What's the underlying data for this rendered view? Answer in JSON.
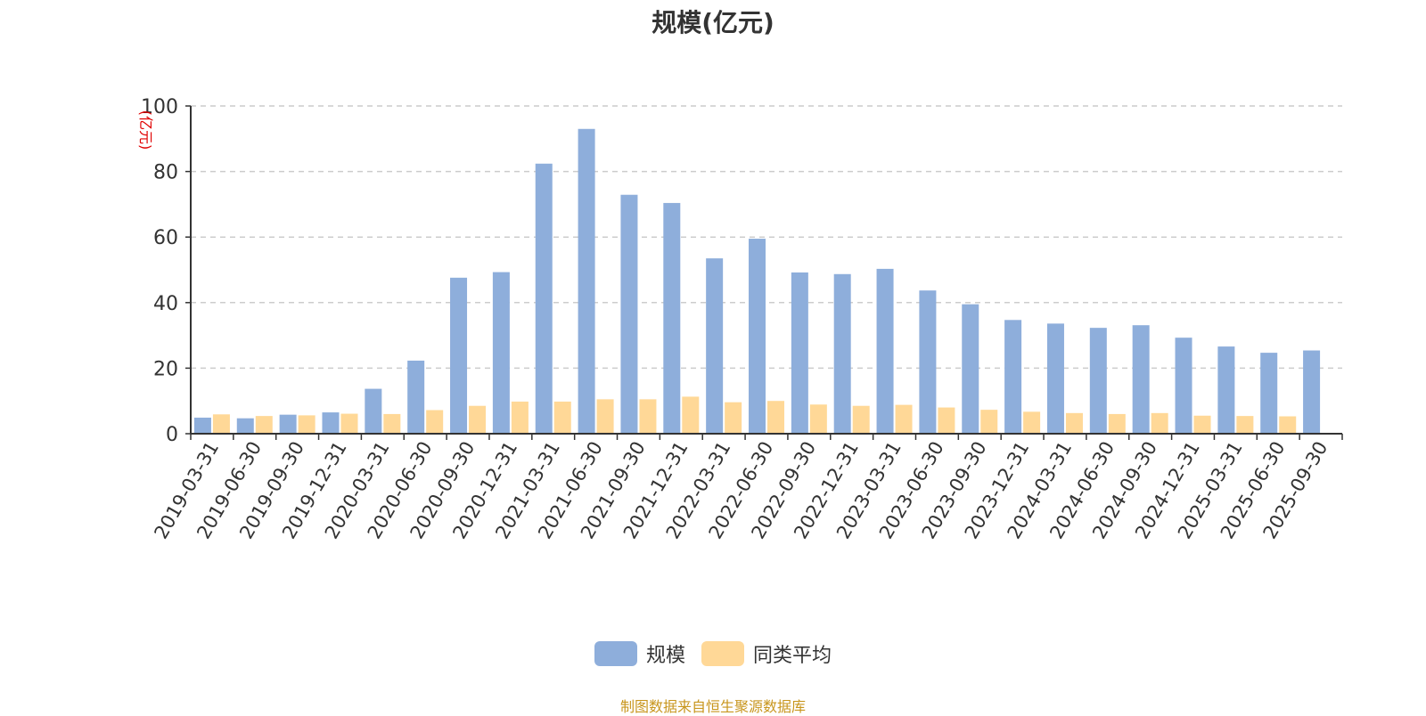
{
  "title": "规模(亿元)",
  "unit_label": "(亿元)",
  "source_text": "制图数据来自恒生聚源数据库",
  "colors": {
    "series_1": "#8eaedb",
    "series_2": "#ffd897",
    "axis": "#333333",
    "grid": "#cccccc",
    "unit": "#e00000",
    "source": "#c8961e"
  },
  "chart_data": {
    "type": "bar",
    "title": "规模(亿元)",
    "xlabel": "",
    "ylabel": "(亿元)",
    "ylim": [
      0,
      100
    ],
    "yticks": [
      0,
      20,
      40,
      60,
      80,
      100
    ],
    "grid": true,
    "legend_position": "bottom",
    "categories": [
      "2019-03-31",
      "2019-06-30",
      "2019-09-30",
      "2019-12-31",
      "2020-03-31",
      "2020-06-30",
      "2020-09-30",
      "2020-12-31",
      "2021-03-31",
      "2021-06-30",
      "2021-09-30",
      "2021-12-31",
      "2022-03-31",
      "2022-06-30",
      "2022-09-30",
      "2022-12-31",
      "2023-03-31",
      "2023-06-30",
      "2023-09-30",
      "2023-12-31",
      "2024-03-31",
      "2024-06-30",
      "2024-09-30",
      "2024-12-31",
      "2025-03-31",
      "2025-06-30",
      "2025-09-30"
    ],
    "series": [
      {
        "name": "规模",
        "values": [
          4.9,
          4.7,
          5.8,
          6.5,
          13.7,
          22.3,
          47.6,
          49.3,
          82.4,
          93.0,
          72.9,
          70.4,
          53.5,
          59.5,
          49.2,
          48.7,
          50.3,
          43.7,
          39.5,
          34.7,
          33.6,
          32.3,
          33.1,
          29.3,
          26.6,
          24.7,
          25.4
        ]
      },
      {
        "name": "同类平均",
        "values": [
          5.9,
          5.4,
          5.6,
          6.1,
          6.0,
          7.2,
          8.5,
          9.8,
          9.8,
          10.5,
          10.5,
          11.3,
          9.6,
          10.0,
          8.9,
          8.5,
          8.8,
          8.0,
          7.3,
          6.7,
          6.3,
          6.0,
          6.3,
          5.5,
          5.4,
          5.3,
          null
        ]
      }
    ]
  }
}
